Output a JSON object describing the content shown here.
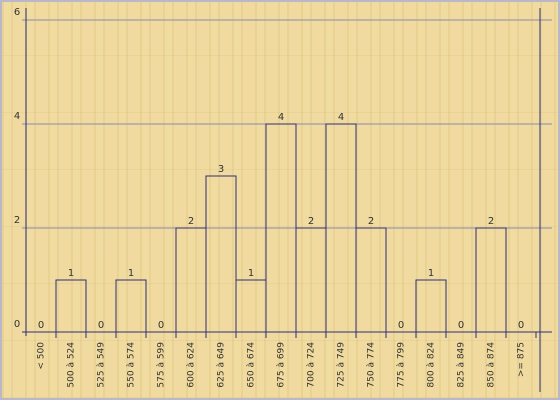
{
  "chart_data": {
    "type": "bar",
    "categories": [
      "< 500",
      "500 à 524",
      "525 à 549",
      "550 à 574",
      "575 à 599",
      "600 à 624",
      "625 à 649",
      "650 à 674",
      "675 à 699",
      "700 à 724",
      "725 à 749",
      "750 à 774",
      "775 à 799",
      "800 à 824",
      "825 à 849",
      "850 à 874",
      ">= 875"
    ],
    "values": [
      0,
      1,
      0,
      1,
      0,
      2,
      3,
      1,
      4,
      2,
      4,
      2,
      0,
      1,
      0,
      2,
      0
    ],
    "color": "#2e2e78",
    "ylim": [
      0,
      6
    ],
    "yticks": [
      0,
      2,
      4,
      6
    ],
    "grid": true
  }
}
